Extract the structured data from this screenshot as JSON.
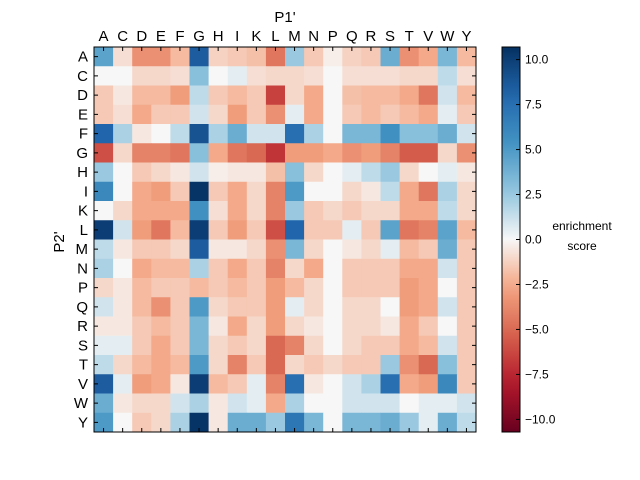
{
  "chart_data": {
    "type": "heatmap",
    "x_title": "P1'",
    "y_title": "P2'",
    "x_categories": [
      "A",
      "C",
      "D",
      "E",
      "F",
      "G",
      "H",
      "I",
      "K",
      "L",
      "M",
      "N",
      "P",
      "Q",
      "R",
      "S",
      "T",
      "V",
      "W",
      "Y"
    ],
    "y_categories": [
      "A",
      "C",
      "D",
      "E",
      "F",
      "G",
      "H",
      "I",
      "K",
      "L",
      "M",
      "N",
      "P",
      "Q",
      "R",
      "S",
      "T",
      "V",
      "W",
      "Y"
    ],
    "colorbar": {
      "label_lines": [
        "enrichment",
        "score"
      ],
      "range": [
        -10.7,
        10.7
      ],
      "ticks": [
        10.0,
        7.5,
        5.0,
        2.5,
        0.0,
        -2.5,
        -5.0,
        -7.5,
        -10.0
      ],
      "tick_labels": [
        "10.0",
        "7.5",
        "5.0",
        "2.5",
        "0.0",
        "−2.5",
        "−5.0",
        "−7.5",
        "−10.0"
      ]
    },
    "values": [
      [
        4.5,
        -0.8,
        -3.5,
        -3.5,
        -2.0,
        8.5,
        -1.2,
        -1.5,
        -1.8,
        -4.5,
        2.5,
        -1.5,
        -0.3,
        -1.2,
        -1.5,
        4.0,
        -3.5,
        -2.5,
        3.5,
        -2.0
      ],
      [
        0.0,
        0.0,
        -1.0,
        -1.0,
        -0.8,
        3.0,
        0.0,
        0.5,
        -0.8,
        -1.0,
        -1.0,
        -0.8,
        0.0,
        -0.8,
        -0.8,
        -0.8,
        -1.0,
        -1.0,
        1.5,
        -0.8
      ],
      [
        -1.5,
        -0.5,
        -2.0,
        -2.0,
        -3.0,
        1.5,
        -1.5,
        -2.0,
        -1.5,
        -6.5,
        -1.0,
        -2.5,
        0.0,
        -1.8,
        -2.0,
        -2.0,
        -2.5,
        -4.5,
        1.0,
        -2.0
      ],
      [
        -1.5,
        -0.8,
        -2.5,
        -1.5,
        -1.5,
        1.0,
        -1.0,
        -3.0,
        -1.5,
        -3.5,
        0.5,
        -2.5,
        0.0,
        -1.5,
        -2.0,
        -1.5,
        -2.0,
        -2.5,
        0.5,
        -1.5
      ],
      [
        8.0,
        2.0,
        -0.5,
        0.0,
        1.5,
        9.0,
        2.0,
        4.0,
        1.0,
        1.0,
        7.5,
        2.0,
        0.0,
        3.5,
        3.5,
        5.5,
        3.0,
        3.0,
        4.0,
        1.0
      ],
      [
        -6.0,
        -1.0,
        -4.0,
        -4.0,
        -4.5,
        3.0,
        -2.5,
        -4.5,
        -5.0,
        -7.0,
        -3.0,
        -3.0,
        -2.5,
        -3.5,
        -3.0,
        -4.0,
        -5.5,
        -5.5,
        -1.0,
        -3.5
      ],
      [
        2.5,
        0.0,
        -1.5,
        -1.0,
        -0.5,
        1.0,
        -0.3,
        -0.5,
        -0.5,
        -1.8,
        3.0,
        -1.0,
        0.0,
        0.5,
        1.5,
        2.5,
        -1.0,
        0.0,
        0.5,
        -0.5
      ],
      [
        6.0,
        0.0,
        -2.5,
        -3.0,
        -1.5,
        10.5,
        -1.5,
        -2.5,
        -1.0,
        -4.0,
        5.0,
        0.0,
        0.0,
        -1.0,
        -0.5,
        1.5,
        -2.5,
        -4.5,
        2.0,
        -1.0
      ],
      [
        0.0,
        -1.0,
        -2.5,
        -2.5,
        -2.5,
        5.5,
        -0.8,
        -2.5,
        -1.0,
        -4.0,
        2.5,
        -1.5,
        -1.0,
        -1.5,
        -1.0,
        -1.0,
        -2.5,
        -2.5,
        1.5,
        -1.0
      ],
      [
        10.0,
        1.0,
        -3.0,
        -4.5,
        -2.0,
        10.0,
        -1.5,
        -3.0,
        -1.5,
        -6.0,
        8.0,
        -1.5,
        -1.5,
        0.5,
        -1.5,
        4.5,
        -4.5,
        -4.0,
        4.5,
        -2.0
      ],
      [
        1.5,
        -0.5,
        -1.5,
        -1.5,
        -1.0,
        8.5,
        -0.5,
        -0.5,
        -1.0,
        -3.5,
        3.5,
        -1.0,
        0.0,
        -0.5,
        -1.0,
        0.5,
        -2.0,
        -1.5,
        4.0,
        -1.5
      ],
      [
        2.0,
        0.0,
        -2.5,
        -2.0,
        -2.0,
        2.0,
        -1.5,
        -2.5,
        -1.5,
        -4.0,
        -1.0,
        -2.5,
        0.0,
        -1.5,
        -1.5,
        -1.5,
        -2.5,
        -2.5,
        1.0,
        -1.5
      ],
      [
        -1.0,
        -0.5,
        -2.0,
        -1.5,
        -1.5,
        -2.0,
        -1.5,
        -2.0,
        -1.5,
        -3.0,
        -2.0,
        -1.0,
        0.0,
        -1.5,
        -1.5,
        -1.5,
        -3.0,
        -2.5,
        0.0,
        -1.5
      ],
      [
        1.0,
        -0.5,
        -2.0,
        -3.5,
        -1.5,
        5.0,
        -1.0,
        -1.5,
        -1.5,
        -3.0,
        0.5,
        -1.0,
        0.0,
        -1.0,
        -1.0,
        0.0,
        -3.0,
        -2.5,
        1.0,
        -1.5
      ],
      [
        -0.5,
        -0.5,
        -1.5,
        -2.0,
        -1.5,
        3.5,
        -0.5,
        -2.5,
        -1.0,
        -3.0,
        -1.0,
        -0.5,
        0.0,
        -1.0,
        -1.0,
        -0.5,
        -2.5,
        -1.5,
        0.0,
        -1.5
      ],
      [
        0.5,
        0.5,
        -1.5,
        -2.5,
        -1.5,
        3.5,
        -1.0,
        -1.5,
        -1.0,
        -5.0,
        -4.0,
        -1.0,
        0.0,
        -1.0,
        -1.5,
        -1.5,
        -2.5,
        -2.0,
        1.0,
        -1.5
      ],
      [
        1.5,
        -1.0,
        -2.0,
        -2.5,
        -2.0,
        5.0,
        -1.0,
        -4.0,
        -1.5,
        -5.0,
        -1.0,
        -1.5,
        -1.0,
        -1.5,
        -1.5,
        2.5,
        -3.5,
        -5.0,
        3.0,
        -1.5
      ],
      [
        8.5,
        0.5,
        -3.0,
        -2.5,
        -0.5,
        10.0,
        -2.0,
        -1.5,
        0.5,
        -4.0,
        7.5,
        -0.5,
        0.0,
        1.0,
        2.0,
        7.5,
        -2.5,
        -3.0,
        6.0,
        -1.5
      ],
      [
        4.0,
        -0.5,
        -1.0,
        -1.0,
        1.0,
        2.0,
        -0.5,
        1.0,
        0.5,
        -2.5,
        2.0,
        0.0,
        0.0,
        1.0,
        1.0,
        1.0,
        0.0,
        0.5,
        0.5,
        1.0
      ],
      [
        5.0,
        0.0,
        -1.5,
        -1.0,
        2.0,
        10.5,
        -0.5,
        4.0,
        4.0,
        2.5,
        7.0,
        3.5,
        0.0,
        3.5,
        3.5,
        4.0,
        2.5,
        0.5,
        4.0,
        1.5
      ]
    ]
  }
}
